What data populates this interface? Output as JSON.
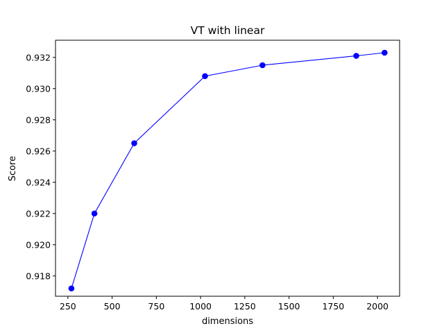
{
  "chart_data": {
    "type": "line",
    "title": "VT with linear",
    "xlabel": "dimensions",
    "ylabel": "Score",
    "xlim": [
      180,
      2125
    ],
    "ylim": [
      0.9167,
      0.9331
    ],
    "x_ticks": [
      250,
      500,
      750,
      1000,
      1250,
      1500,
      1750,
      2000
    ],
    "y_ticks": [
      0.918,
      0.92,
      0.922,
      0.924,
      0.926,
      0.928,
      0.93,
      0.932
    ],
    "grid": false,
    "series": [
      {
        "x": [
          270,
          400,
          625,
          1025,
          1350,
          1880,
          2040
        ],
        "y": [
          0.9172,
          0.922,
          0.9265,
          0.9308,
          0.9315,
          0.9321,
          0.9323
        ],
        "color": "#0000ff",
        "marker": "circle"
      }
    ]
  }
}
